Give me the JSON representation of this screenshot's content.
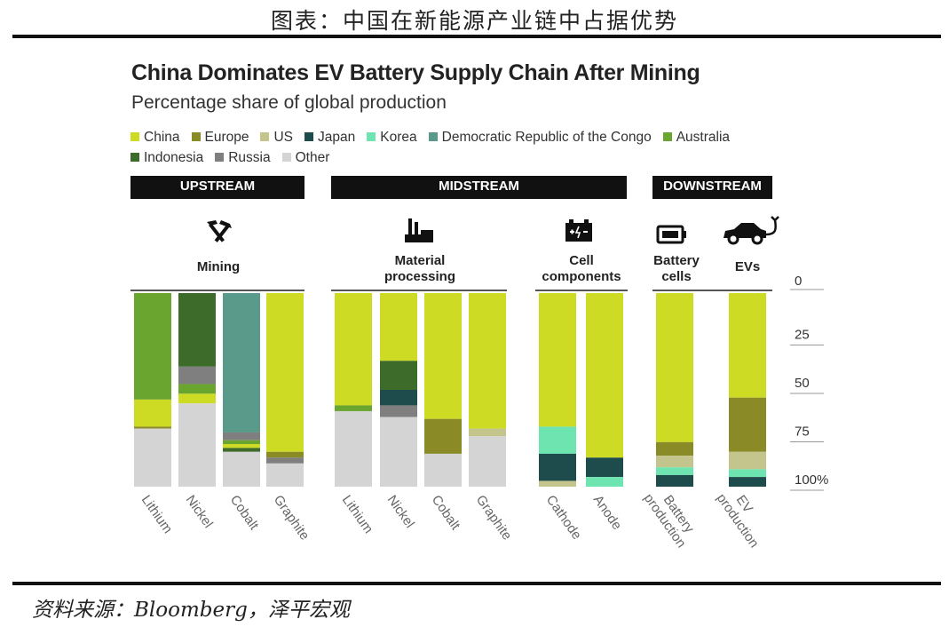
{
  "caption": "图表：中国在新能源产业链中占据优势",
  "source": "资料来源：Bloomberg，泽平宏观",
  "colors": {
    "China": "#cddb25",
    "Europe": "#8a8b26",
    "US": "#c4c48d",
    "Japan": "#1e4c4c",
    "Korea": "#6ee5b0",
    "Democratic Republic of the Congo": "#5a9a8a",
    "Australia": "#6aa52f",
    "Indonesia": "#3d6b2a",
    "Russia": "#7f7f7f",
    "Other": "#d4d4d4"
  },
  "stages": {
    "upstream": "UPSTREAM",
    "midstream": "MIDSTREAM",
    "downstream": "DOWNSTREAM"
  },
  "groups": {
    "mining": "Mining",
    "material_processing": "Material processing",
    "cell_components": "Cell components",
    "battery_cells": "Battery cells",
    "evs": "EVs"
  },
  "icons": {
    "mining": "pickaxe-hammer-icon",
    "material_processing": "factory-icon",
    "cell_components": "battery-terminals-icon",
    "battery_cells": "battery-icon",
    "evs": "electric-car-icon"
  },
  "chart_data": {
    "type": "bar",
    "stacked": true,
    "orientation": "vertical",
    "title": "China Dominates EV Battery Supply Chain After Mining",
    "subtitle": "Percentage share of global production",
    "ylabel": "",
    "ylim": [
      0,
      100
    ],
    "y_inverted": true,
    "y_ticks": [
      "0",
      "25",
      "50",
      "75",
      "100%"
    ],
    "legend": [
      "China",
      "Europe",
      "US",
      "Japan",
      "Korea",
      "Democratic Republic of the Congo",
      "Australia",
      "Indonesia",
      "Russia",
      "Other"
    ],
    "legend_placement": "top",
    "categories": [
      "Lithium",
      "Nickel",
      "Cobalt",
      "Graphite",
      "Lithium",
      "Nickel",
      "Cobalt",
      "Graphite",
      "Cathode",
      "Anode",
      "Battery production",
      "EV production"
    ],
    "bars": [
      {
        "label": "Lithium",
        "stage": "UPSTREAM",
        "group": "Mining",
        "segments": [
          {
            "name": "Australia",
            "value": 55
          },
          {
            "name": "China",
            "value": 14
          },
          {
            "name": "Europe",
            "value": 1
          },
          {
            "name": "Other",
            "value": 30
          }
        ]
      },
      {
        "label": "Nickel",
        "stage": "UPSTREAM",
        "group": "Mining",
        "segments": [
          {
            "name": "Indonesia",
            "value": 38
          },
          {
            "name": "Russia",
            "value": 9
          },
          {
            "name": "Australia",
            "value": 5
          },
          {
            "name": "China",
            "value": 5
          },
          {
            "name": "Other",
            "value": 43
          }
        ]
      },
      {
        "label": "Cobalt",
        "stage": "UPSTREAM",
        "group": "Mining",
        "segments": [
          {
            "name": "Democratic Republic of the Congo",
            "value": 72
          },
          {
            "name": "Russia",
            "value": 4
          },
          {
            "name": "Australia",
            "value": 2
          },
          {
            "name": "China",
            "value": 2
          },
          {
            "name": "Indonesia",
            "value": 2
          },
          {
            "name": "Other",
            "value": 18
          }
        ]
      },
      {
        "label": "Graphite",
        "stage": "UPSTREAM",
        "group": "Mining",
        "segments": [
          {
            "name": "China",
            "value": 82
          },
          {
            "name": "Europe",
            "value": 3
          },
          {
            "name": "Russia",
            "value": 3
          },
          {
            "name": "Other",
            "value": 12
          }
        ]
      },
      {
        "label": "Lithium",
        "stage": "MIDSTREAM",
        "group": "Material processing",
        "segments": [
          {
            "name": "China",
            "value": 58
          },
          {
            "name": "Australia",
            "value": 3
          },
          {
            "name": "Other",
            "value": 39
          }
        ]
      },
      {
        "label": "Nickel",
        "stage": "MIDSTREAM",
        "group": "Material processing",
        "segments": [
          {
            "name": "China",
            "value": 35
          },
          {
            "name": "Indonesia",
            "value": 15
          },
          {
            "name": "Japan",
            "value": 8
          },
          {
            "name": "Russia",
            "value": 6
          },
          {
            "name": "Other",
            "value": 36
          }
        ]
      },
      {
        "label": "Cobalt",
        "stage": "MIDSTREAM",
        "group": "Material processing",
        "segments": [
          {
            "name": "China",
            "value": 65
          },
          {
            "name": "Europe",
            "value": 18
          },
          {
            "name": "Other",
            "value": 17
          }
        ]
      },
      {
        "label": "Graphite",
        "stage": "MIDSTREAM",
        "group": "Material processing",
        "segments": [
          {
            "name": "China",
            "value": 70
          },
          {
            "name": "US",
            "value": 4
          },
          {
            "name": "Other",
            "value": 26
          }
        ]
      },
      {
        "label": "Cathode",
        "stage": "MIDSTREAM",
        "group": "Cell components",
        "segments": [
          {
            "name": "China",
            "value": 69
          },
          {
            "name": "Korea",
            "value": 14
          },
          {
            "name": "Japan",
            "value": 14
          },
          {
            "name": "US",
            "value": 3
          }
        ]
      },
      {
        "label": "Anode",
        "stage": "MIDSTREAM",
        "group": "Cell components",
        "segments": [
          {
            "name": "China",
            "value": 85
          },
          {
            "name": "Japan",
            "value": 10
          },
          {
            "name": "Korea",
            "value": 5
          }
        ]
      },
      {
        "label": "Battery production",
        "stage": "DOWNSTREAM",
        "group": "Battery cells",
        "segments": [
          {
            "name": "China",
            "value": 77
          },
          {
            "name": "Europe",
            "value": 7
          },
          {
            "name": "US",
            "value": 6
          },
          {
            "name": "Korea",
            "value": 4
          },
          {
            "name": "Japan",
            "value": 6
          }
        ]
      },
      {
        "label": "EV production",
        "stage": "DOWNSTREAM",
        "group": "EVs",
        "segments": [
          {
            "name": "China",
            "value": 54
          },
          {
            "name": "Europe",
            "value": 28
          },
          {
            "name": "US",
            "value": 9
          },
          {
            "name": "Korea",
            "value": 4
          },
          {
            "name": "Japan",
            "value": 5
          }
        ]
      }
    ]
  }
}
